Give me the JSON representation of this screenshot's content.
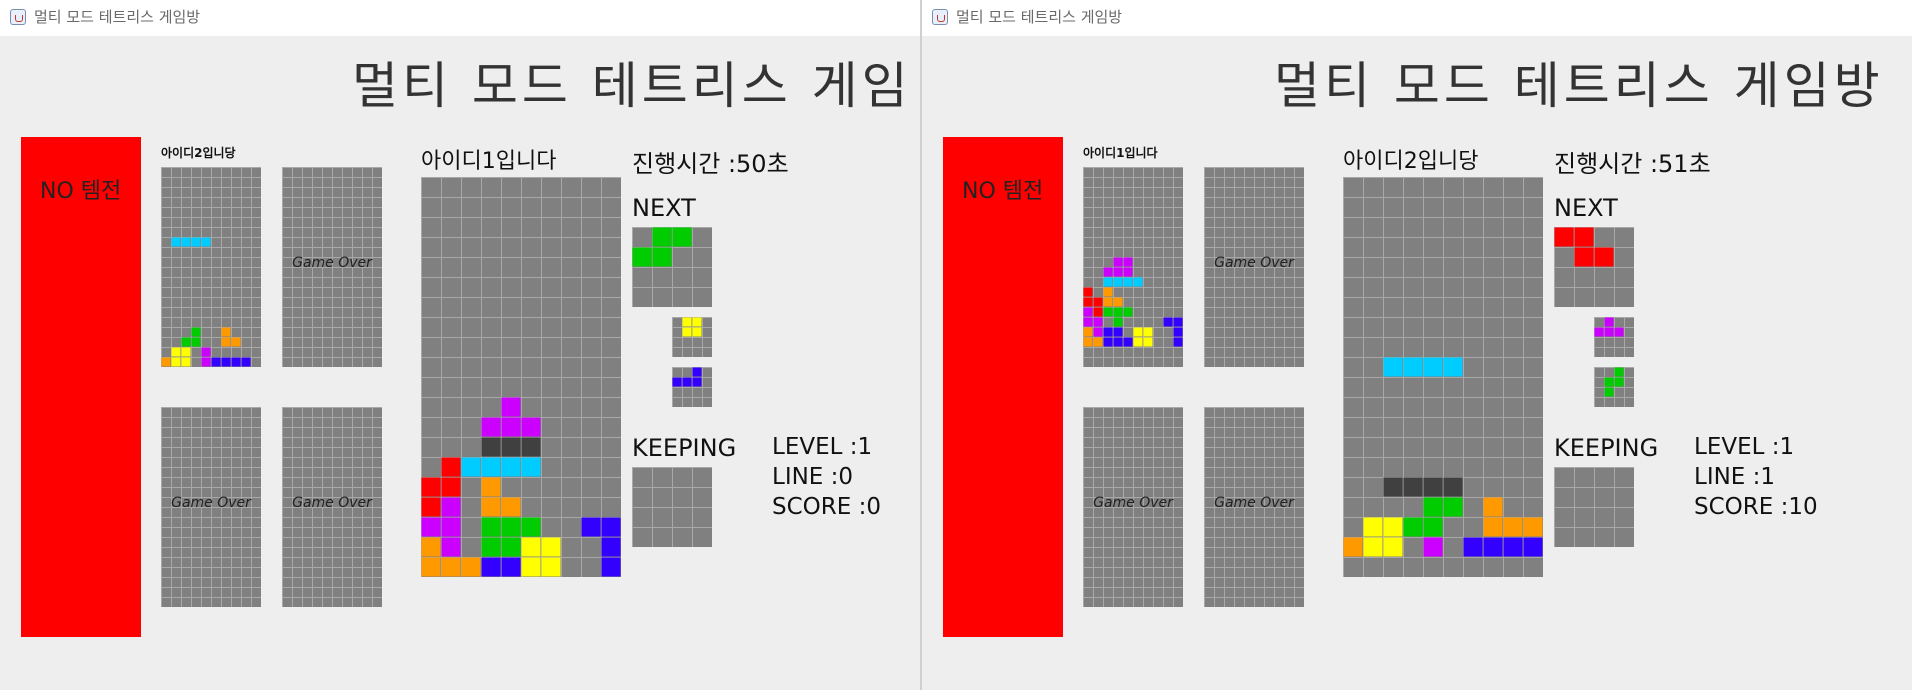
{
  "colors": {
    "bg": "#eeeeee",
    "panel": "#ff0000",
    "cell": "#808080",
    "grid_line": "#a8a8a8",
    "red": "#ff0000",
    "cyan": "#00ccff",
    "magenta": "#cc00ff",
    "orange": "#ff9900",
    "green": "#00cc00",
    "yellow": "#ffff00",
    "blue": "#3300ff",
    "dark": "#404040"
  },
  "windows": [
    {
      "title": "멀티 모드 테트리스 게임방",
      "game_title": "멀티 모드 테트리스 게임",
      "challenge_label": "NO 템전",
      "player_name": "아이디1입니다",
      "time_label": "진행시간 :50초",
      "next_label": "NEXT",
      "keeping_label": "KEEPING",
      "level_label": "LEVEL   :1",
      "line_label": "LINE      :0",
      "score_label": "SCORE :0",
      "opponents": [
        {
          "name": "아이디2입니당",
          "status": ""
        },
        {
          "name": "",
          "status": "Game Over"
        },
        {
          "name": "",
          "status": "Game Over"
        },
        {
          "name": "",
          "status": "Game Over"
        }
      ]
    },
    {
      "title": "멀티 모드 테트리스 게임방",
      "game_title": "멀티 모드 테트리스 게임방",
      "challenge_label": "NO 템전",
      "player_name": "아이디2입니당",
      "time_label": "진행시간 :51초",
      "next_label": "NEXT",
      "keeping_label": "KEEPING",
      "level_label": "LEVEL   :1",
      "line_label": "LINE      :1",
      "score_label": "SCORE :10",
      "opponents": [
        {
          "name": "아이디1입니다",
          "status": ""
        },
        {
          "name": "",
          "status": "Game Over"
        },
        {
          "name": "",
          "status": "Game Over"
        },
        {
          "name": "",
          "status": "Game Over"
        }
      ]
    }
  ]
}
